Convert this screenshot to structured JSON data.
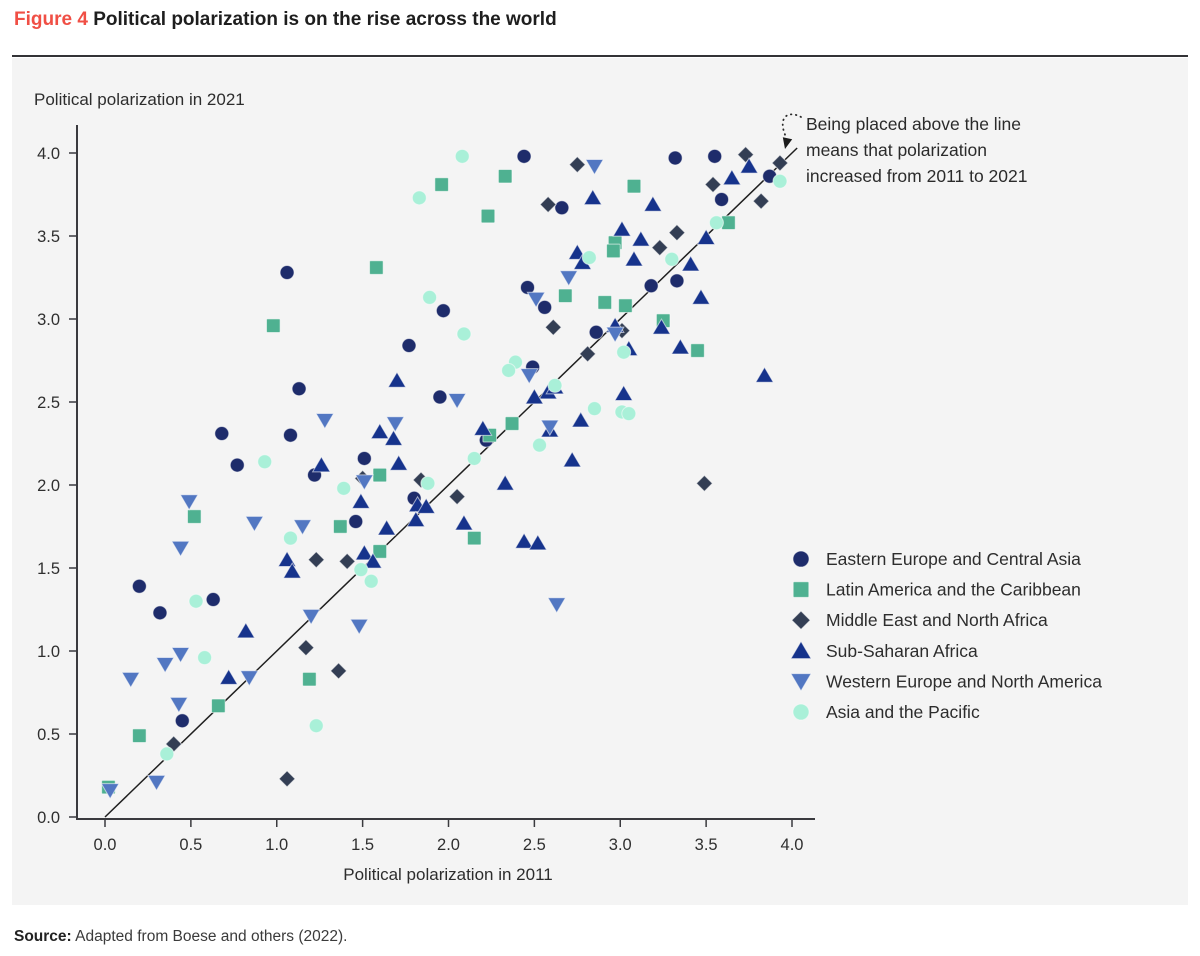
{
  "figure": {
    "label": "Figure 4",
    "title": "Political polarization is on the rise across the world",
    "label_color": "#f04f45"
  },
  "source": {
    "prefix": "Source:",
    "text": "Adapted from Boese and others (2022)."
  },
  "chart_data": {
    "type": "scatter",
    "xlabel": "Political polarization in 2011",
    "ylabel": "Political polarization in 2021",
    "xlim": [
      0,
      4
    ],
    "ylim": [
      0,
      4
    ],
    "xticks": [
      0,
      0.5,
      1,
      1.5,
      2,
      2.5,
      3,
      3.5,
      4
    ],
    "yticks": [
      0,
      0.5,
      1,
      1.5,
      2,
      2.5,
      3,
      3.5,
      4
    ],
    "grid": false,
    "legend_position": "right",
    "identity_line": {
      "x0": 0,
      "y0": 0,
      "x1": 4.03,
      "y1": 4.03
    },
    "annotation": {
      "lines": [
        "Being placed above the line",
        "means that polarization",
        "increased from 2011 to 2021"
      ]
    },
    "series": [
      {
        "name": "Eastern Europe and Central Asia",
        "marker": "circle",
        "color": "#1e2c6b",
        "points": [
          [
            1.06,
            3.28
          ],
          [
            1.97,
            3.05
          ],
          [
            1.77,
            2.84
          ],
          [
            1.13,
            2.58
          ],
          [
            1.95,
            2.53
          ],
          [
            0.68,
            2.31
          ],
          [
            1.08,
            2.3
          ],
          [
            1.51,
            2.16
          ],
          [
            0.77,
            2.12
          ],
          [
            2.44,
            3.98
          ],
          [
            3.32,
            3.97
          ],
          [
            3.55,
            3.98
          ],
          [
            3.87,
            3.86
          ],
          [
            3.59,
            3.72
          ],
          [
            2.66,
            3.67
          ],
          [
            2.46,
            3.19
          ],
          [
            3.18,
            3.2
          ],
          [
            3.33,
            3.23
          ],
          [
            2.56,
            3.07
          ],
          [
            2.86,
            2.92
          ],
          [
            2.49,
            2.71
          ],
          [
            2.22,
            2.27
          ],
          [
            1.22,
            2.06
          ],
          [
            1.8,
            1.92
          ],
          [
            1.46,
            1.78
          ],
          [
            0.2,
            1.39
          ],
          [
            0.63,
            1.31
          ],
          [
            0.32,
            1.23
          ],
          [
            0.45,
            0.58
          ]
        ]
      },
      {
        "name": "Latin America and the Caribbean",
        "marker": "square",
        "color": "#4fb191",
        "points": [
          [
            1.96,
            3.81
          ],
          [
            2.33,
            3.86
          ],
          [
            3.08,
            3.8
          ],
          [
            2.23,
            3.62
          ],
          [
            3.63,
            3.58
          ],
          [
            2.97,
            3.46
          ],
          [
            2.96,
            3.41
          ],
          [
            1.58,
            3.31
          ],
          [
            2.68,
            3.14
          ],
          [
            2.91,
            3.1
          ],
          [
            3.03,
            3.08
          ],
          [
            0.98,
            2.96
          ],
          [
            3.25,
            2.99
          ],
          [
            3.45,
            2.81
          ],
          [
            2.37,
            2.37
          ],
          [
            2.24,
            2.3
          ],
          [
            1.6,
            2.06
          ],
          [
            2.15,
            1.68
          ],
          [
            0.52,
            1.81
          ],
          [
            1.37,
            1.75
          ],
          [
            1.6,
            1.6
          ],
          [
            1.19,
            0.83
          ],
          [
            0.66,
            0.67
          ],
          [
            0.2,
            0.49
          ],
          [
            0.02,
            0.18
          ]
        ]
      },
      {
        "name": "Middle East and North Africa",
        "marker": "diamond",
        "color": "#333e54",
        "points": [
          [
            2.75,
            3.93
          ],
          [
            3.73,
            3.99
          ],
          [
            3.93,
            3.94
          ],
          [
            3.54,
            3.81
          ],
          [
            3.82,
            3.71
          ],
          [
            2.58,
            3.69
          ],
          [
            3.33,
            3.52
          ],
          [
            3.23,
            3.43
          ],
          [
            2.61,
            2.95
          ],
          [
            3.01,
            2.93
          ],
          [
            2.81,
            2.79
          ],
          [
            3.49,
            2.01
          ],
          [
            2.05,
            1.93
          ],
          [
            1.84,
            2.03
          ],
          [
            1.5,
            2.04
          ],
          [
            1.23,
            1.55
          ],
          [
            1.41,
            1.54
          ],
          [
            1.17,
            1.02
          ],
          [
            1.36,
            0.88
          ],
          [
            0.4,
            0.44
          ],
          [
            1.06,
            0.23
          ]
        ]
      },
      {
        "name": "Sub-Saharan Africa",
        "marker": "triangle-up",
        "color": "#16338c",
        "points": [
          [
            3.75,
            3.92
          ],
          [
            3.65,
            3.85
          ],
          [
            2.84,
            3.73
          ],
          [
            3.19,
            3.69
          ],
          [
            3.01,
            3.54
          ],
          [
            3.5,
            3.49
          ],
          [
            3.12,
            3.48
          ],
          [
            2.75,
            3.4
          ],
          [
            2.78,
            3.34
          ],
          [
            3.08,
            3.36
          ],
          [
            3.41,
            3.33
          ],
          [
            3.47,
            3.13
          ],
          [
            2.97,
            2.96
          ],
          [
            3.24,
            2.95
          ],
          [
            3.05,
            2.82
          ],
          [
            3.35,
            2.83
          ],
          [
            3.84,
            2.66
          ],
          [
            1.7,
            2.63
          ],
          [
            2.58,
            2.56
          ],
          [
            2.62,
            2.59
          ],
          [
            2.5,
            2.53
          ],
          [
            3.02,
            2.55
          ],
          [
            2.77,
            2.39
          ],
          [
            2.59,
            2.33
          ],
          [
            2.2,
            2.34
          ],
          [
            1.6,
            2.32
          ],
          [
            1.68,
            2.28
          ],
          [
            2.72,
            2.15
          ],
          [
            1.71,
            2.13
          ],
          [
            1.26,
            2.12
          ],
          [
            2.33,
            2.01
          ],
          [
            2.09,
            1.77
          ],
          [
            2.44,
            1.66
          ],
          [
            2.52,
            1.65
          ],
          [
            1.82,
            1.88
          ],
          [
            1.87,
            1.87
          ],
          [
            1.81,
            1.79
          ],
          [
            1.64,
            1.74
          ],
          [
            1.49,
            1.9
          ],
          [
            1.51,
            1.59
          ],
          [
            1.56,
            1.54
          ],
          [
            1.06,
            1.55
          ],
          [
            1.09,
            1.48
          ],
          [
            0.82,
            1.12
          ],
          [
            0.72,
            0.84
          ]
        ]
      },
      {
        "name": "Western Europe and North America",
        "marker": "triangle-down",
        "color": "#5277c2",
        "points": [
          [
            2.85,
            3.92
          ],
          [
            2.7,
            3.25
          ],
          [
            2.51,
            3.12
          ],
          [
            2.97,
            2.91
          ],
          [
            2.47,
            2.66
          ],
          [
            2.59,
            2.35
          ],
          [
            2.05,
            2.51
          ],
          [
            1.28,
            2.39
          ],
          [
            1.69,
            2.37
          ],
          [
            1.51,
            2.02
          ],
          [
            0.49,
            1.9
          ],
          [
            0.87,
            1.77
          ],
          [
            1.15,
            1.75
          ],
          [
            0.44,
            1.62
          ],
          [
            2.63,
            1.28
          ],
          [
            1.2,
            1.21
          ],
          [
            1.48,
            1.15
          ],
          [
            0.44,
            0.98
          ],
          [
            0.35,
            0.92
          ],
          [
            0.84,
            0.84
          ],
          [
            0.15,
            0.83
          ],
          [
            0.43,
            0.68
          ],
          [
            0.3,
            0.21
          ],
          [
            0.03,
            0.16
          ]
        ]
      },
      {
        "name": "Asia and the Pacific",
        "marker": "circle",
        "color": "#a9f0d8",
        "points": [
          [
            2.08,
            3.98
          ],
          [
            1.83,
            3.73
          ],
          [
            3.93,
            3.83
          ],
          [
            3.56,
            3.58
          ],
          [
            2.82,
            3.37
          ],
          [
            3.3,
            3.36
          ],
          [
            1.89,
            3.13
          ],
          [
            2.09,
            2.91
          ],
          [
            3.02,
            2.8
          ],
          [
            2.39,
            2.74
          ],
          [
            2.35,
            2.69
          ],
          [
            2.62,
            2.6
          ],
          [
            2.85,
            2.46
          ],
          [
            3.01,
            2.44
          ],
          [
            3.05,
            2.43
          ],
          [
            2.53,
            2.24
          ],
          [
            2.15,
            2.16
          ],
          [
            0.93,
            2.14
          ],
          [
            1.88,
            2.01
          ],
          [
            1.39,
            1.98
          ],
          [
            1.08,
            1.68
          ],
          [
            1.49,
            1.49
          ],
          [
            1.55,
            1.42
          ],
          [
            0.53,
            1.3
          ],
          [
            0.58,
            0.96
          ],
          [
            1.23,
            0.55
          ],
          [
            0.36,
            0.38
          ]
        ]
      }
    ]
  }
}
